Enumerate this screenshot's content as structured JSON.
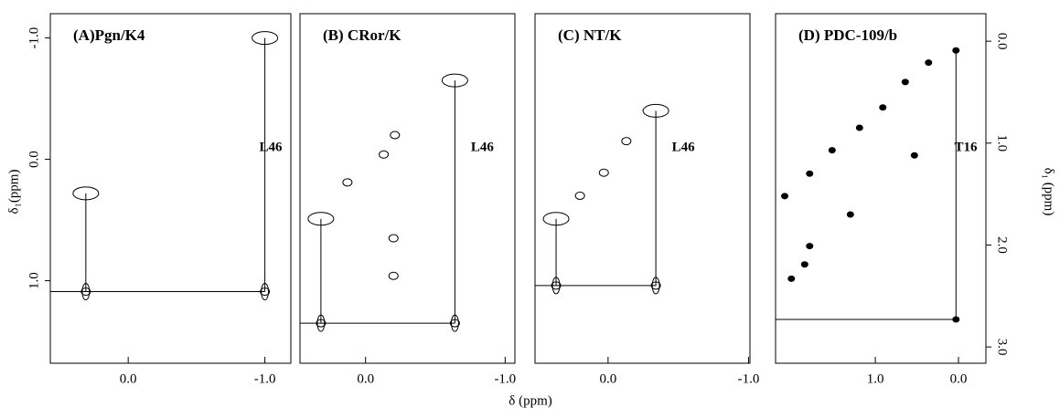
{
  "xlabel": "δ (ppm)",
  "chart_data": [
    {
      "type": "scatter",
      "title": "(A)Pgn/K4",
      "ylabel": "δ₁(ppm)",
      "annotation": "L46",
      "xlim": [
        0.57,
        -1.19
      ],
      "xticks": [
        {
          "value": 0,
          "label": "0.0"
        },
        {
          "value": -1,
          "label": "-1.0"
        }
      ],
      "ylim": [
        -1.2,
        1.68
      ],
      "yticks": [
        {
          "value": -1,
          "label": "-1.0"
        },
        {
          "value": 0,
          "label": "0.0"
        },
        {
          "value": 1,
          "label": "1.0"
        }
      ],
      "x": [
        0.31,
        -1.0,
        0.31,
        -1.0
      ],
      "values": [
        0.28,
        -1.0,
        1.09,
        1.09
      ]
    },
    {
      "type": "scatter",
      "title": "(B) CRor/K",
      "annotation": "L46",
      "xlim": [
        0.47,
        -1.07
      ],
      "xticks": [
        {
          "value": 0,
          "label": "0.0"
        },
        {
          "value": -1,
          "label": "-1.0"
        }
      ],
      "ylim": [
        -1.2,
        1.68
      ],
      "x": [
        0.32,
        -0.64,
        0.32,
        -0.64,
        0.13,
        -0.13,
        -0.21,
        -0.2,
        -0.2
      ],
      "values": [
        0.49,
        -0.65,
        1.35,
        1.35,
        0.19,
        -0.04,
        -0.2,
        0.65,
        0.96
      ]
    },
    {
      "type": "scatter",
      "title": "(C) NT/K",
      "annotation": "L46",
      "xlim": [
        0.52,
        -1.01
      ],
      "xticks": [
        {
          "value": 0,
          "label": "0.0"
        },
        {
          "value": -1,
          "label": "-1.0"
        }
      ],
      "ylim": [
        -1.2,
        1.68
      ],
      "x": [
        0.37,
        -0.34,
        0.37,
        -0.34,
        0.2,
        0.03,
        -0.13
      ],
      "values": [
        0.49,
        -0.4,
        1.04,
        1.04,
        0.3,
        0.11,
        -0.15
      ]
    },
    {
      "type": "scatter",
      "title": "(D) PDC-109/b",
      "ylabel": "δ₁ (ppm)",
      "annotation": "T16",
      "xlim": [
        2.2,
        -0.33
      ],
      "xticks": [
        {
          "value": 1,
          "label": "1.0"
        },
        {
          "value": 0,
          "label": "0.0"
        }
      ],
      "ylim": [
        -0.27,
        3.16
      ],
      "yticks": [
        {
          "value": 0,
          "label": "0.0"
        },
        {
          "value": 1,
          "label": "1.0"
        },
        {
          "value": 2,
          "label": "2.0"
        },
        {
          "value": 3,
          "label": "3.0"
        }
      ],
      "x": [
        0.03,
        0.03,
        2.09,
        1.79,
        1.52,
        1.19,
        0.91,
        0.64,
        0.36,
        1.79,
        1.85,
        0.53,
        1.3,
        2.01
      ],
      "values": [
        0.09,
        2.73,
        1.52,
        1.3,
        1.07,
        0.85,
        0.65,
        0.4,
        0.21,
        2.01,
        2.19,
        1.12,
        1.7,
        2.33
      ]
    }
  ]
}
